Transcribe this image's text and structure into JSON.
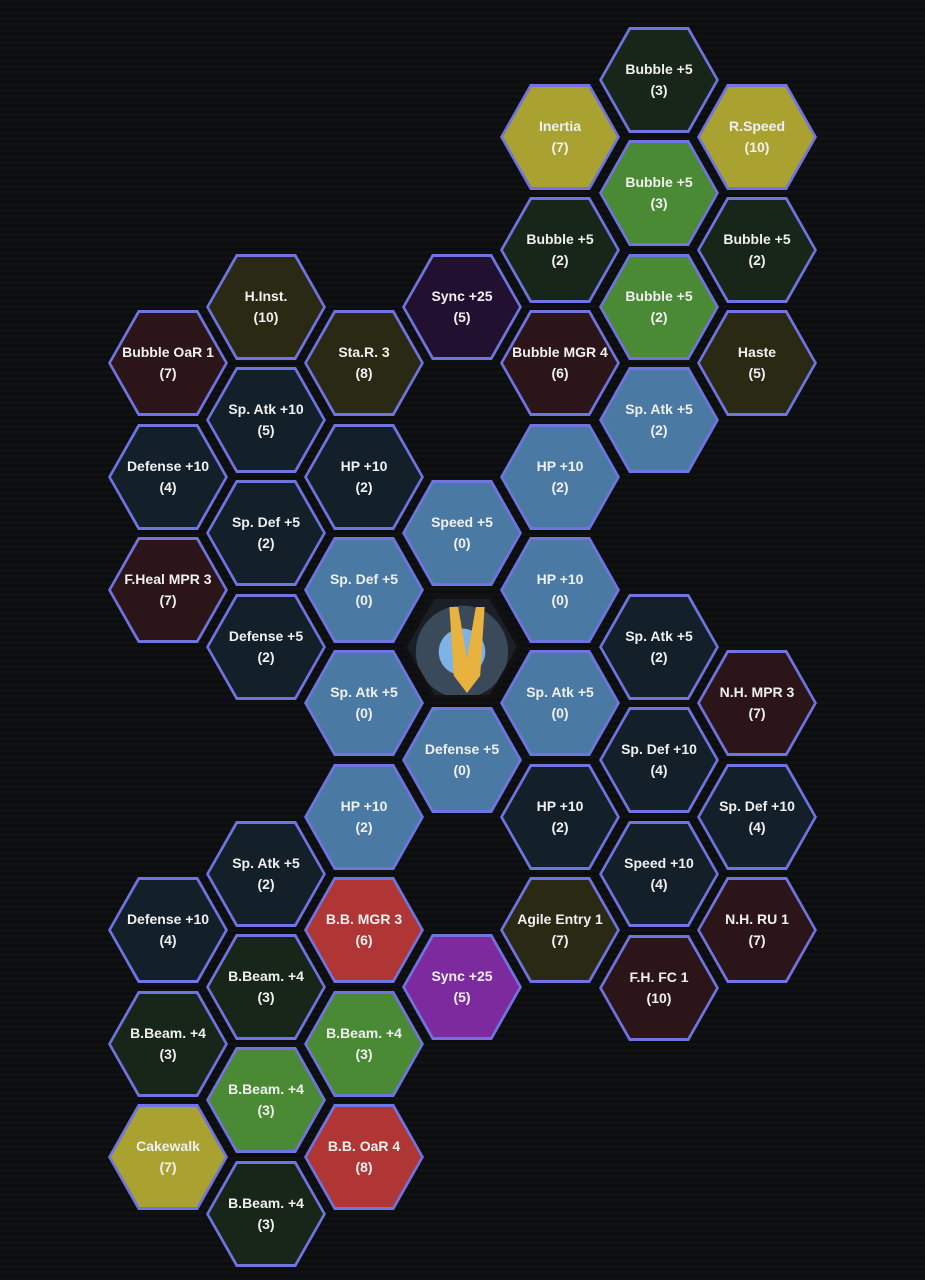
{
  "colors": {
    "border": "#6f74e0",
    "blue": "#4a7aa3",
    "dark": "#13202a",
    "darkgreen": "#172618",
    "green": "#4a8a35",
    "yellow": "#a9a230",
    "darkred": "#2b1519",
    "olive": "#2a2914",
    "red": "#b03535",
    "purple": "#7d2a9e",
    "darkpurple": "#221030"
  },
  "center": {
    "icon": "pokemon-portrait"
  },
  "nodes": [
    {
      "label": "Bubble +5",
      "cost": "(3)",
      "type": "darkgreen"
    },
    {
      "label": "Bubble +5",
      "cost": "(3)",
      "type": "green"
    },
    {
      "label": "Bubble +5",
      "cost": "(2)",
      "type": "green"
    },
    {
      "label": "Sp. Atk +5",
      "cost": "(2)",
      "type": "blue"
    },
    {
      "label": "Sp. Atk +5",
      "cost": "(2)",
      "type": "dark"
    },
    {
      "label": "Sp. Def +10",
      "cost": "(4)",
      "type": "dark"
    },
    {
      "label": "Speed +10",
      "cost": "(4)",
      "type": "dark"
    },
    {
      "label": "F.H. FC 1",
      "cost": "(10)",
      "type": "darkred"
    },
    {
      "label": "Inertia",
      "cost": "(7)",
      "type": "yellow"
    },
    {
      "label": "Bubble +5",
      "cost": "(2)",
      "type": "darkgreen"
    },
    {
      "label": "Bubble MGR 4",
      "cost": "(6)",
      "type": "darkred"
    },
    {
      "label": "HP +10",
      "cost": "(2)",
      "type": "blue"
    },
    {
      "label": "HP +10",
      "cost": "(0)",
      "type": "blue"
    },
    {
      "label": "Sp. Atk +5",
      "cost": "(0)",
      "type": "blue"
    },
    {
      "label": "HP +10",
      "cost": "(2)",
      "type": "dark"
    },
    {
      "label": "Agile Entry 1",
      "cost": "(7)",
      "type": "olive"
    },
    {
      "label": "R.Speed",
      "cost": "(10)",
      "type": "yellow"
    },
    {
      "label": "Bubble +5",
      "cost": "(2)",
      "type": "darkgreen"
    },
    {
      "label": "Haste",
      "cost": "(5)",
      "type": "olive"
    },
    {
      "label": "N.H. MPR 3",
      "cost": "(7)",
      "type": "darkred"
    },
    {
      "label": "Sp. Def +10",
      "cost": "(4)",
      "type": "dark"
    },
    {
      "label": "N.H. RU 1",
      "cost": "(7)",
      "type": "darkred"
    },
    {
      "label": "Sync +25",
      "cost": "(5)",
      "type": "darkpurple"
    },
    {
      "label": "Speed +5",
      "cost": "(0)",
      "type": "blue"
    },
    {
      "label": "Defense +5",
      "cost": "(0)",
      "type": "blue"
    },
    {
      "label": "Sync +25",
      "cost": "(5)",
      "type": "purple"
    },
    {
      "label": "Sta.R. 3",
      "cost": "(8)",
      "type": "olive"
    },
    {
      "label": "HP +10",
      "cost": "(2)",
      "type": "dark"
    },
    {
      "label": "Sp. Def +5",
      "cost": "(0)",
      "type": "blue"
    },
    {
      "label": "Sp. Atk +5",
      "cost": "(0)",
      "type": "blue"
    },
    {
      "label": "HP +10",
      "cost": "(2)",
      "type": "blue"
    },
    {
      "label": "B.B. MGR 3",
      "cost": "(6)",
      "type": "red"
    },
    {
      "label": "B.Beam. +4",
      "cost": "(3)",
      "type": "green"
    },
    {
      "label": "B.B. OaR 4",
      "cost": "(8)",
      "type": "red"
    },
    {
      "label": "H.Inst.",
      "cost": "(10)",
      "type": "olive"
    },
    {
      "label": "Sp. Atk +10",
      "cost": "(5)",
      "type": "dark"
    },
    {
      "label": "Sp. Def +5",
      "cost": "(2)",
      "type": "dark"
    },
    {
      "label": "Defense +5",
      "cost": "(2)",
      "type": "dark"
    },
    {
      "label": "Sp. Atk +5",
      "cost": "(2)",
      "type": "dark"
    },
    {
      "label": "B.Beam. +4",
      "cost": "(3)",
      "type": "darkgreen"
    },
    {
      "label": "B.Beam. +4",
      "cost": "(3)",
      "type": "green"
    },
    {
      "label": "B.Beam. +4",
      "cost": "(3)",
      "type": "darkgreen"
    },
    {
      "label": "Bubble OaR 1",
      "cost": "(7)",
      "type": "darkred"
    },
    {
      "label": "Defense +10",
      "cost": "(4)",
      "type": "dark"
    },
    {
      "label": "F.Heal MPR 3",
      "cost": "(7)",
      "type": "darkred"
    },
    {
      "label": "Defense +10",
      "cost": "(4)",
      "type": "dark"
    },
    {
      "label": "B.Beam. +4",
      "cost": "(3)",
      "type": "darkgreen"
    },
    {
      "label": "Cakewalk",
      "cost": "(7)",
      "type": "yellow"
    }
  ]
}
